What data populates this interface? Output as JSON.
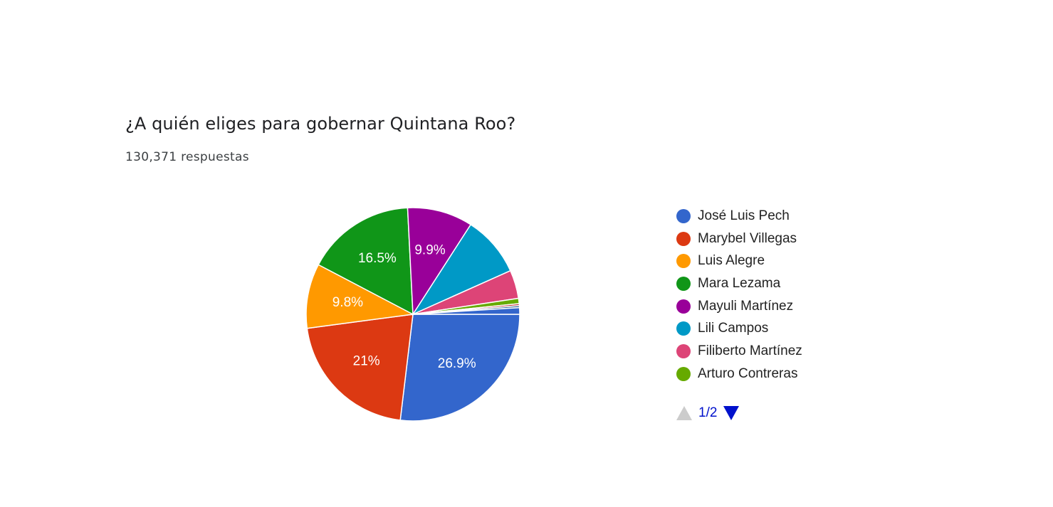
{
  "question": {
    "title": "¿A quién eliges para gobernar Quintana Roo?",
    "responses": "130,371 respuestas"
  },
  "pager": {
    "label": "1/2"
  },
  "chart_data": {
    "type": "pie",
    "legend_position": "right",
    "slices": [
      {
        "name": "José Luis Pech",
        "value": 26.9,
        "label": "26.9%",
        "color": "#3366cc"
      },
      {
        "name": "Marybel Villegas",
        "value": 21.0,
        "label": "21%",
        "color": "#dc3912"
      },
      {
        "name": "Luis Alegre",
        "value": 9.8,
        "label": "9.8%",
        "color": "#ff9900"
      },
      {
        "name": "Mara Lezama",
        "value": 16.5,
        "label": "16.5%",
        "color": "#109618"
      },
      {
        "name": "Mayuli Martínez",
        "value": 9.9,
        "label": "9.9%",
        "color": "#990099"
      },
      {
        "name": "Lili Campos",
        "value": 9.2,
        "label": "",
        "color": "#0099c6"
      },
      {
        "name": "Filiberto Martínez",
        "value": 4.3,
        "label": "",
        "color": "#dd4477"
      },
      {
        "name": "Arturo Contreras",
        "value": 0.8,
        "label": "",
        "color": "#66aa00"
      },
      {
        "name": "",
        "value": 0.3,
        "label": "",
        "color": "#b82e2e"
      },
      {
        "name": "",
        "value": 0.3,
        "label": "",
        "color": "#316395"
      },
      {
        "name": "",
        "value": 1.0,
        "label": "",
        "color": "#3366cc"
      }
    ]
  }
}
